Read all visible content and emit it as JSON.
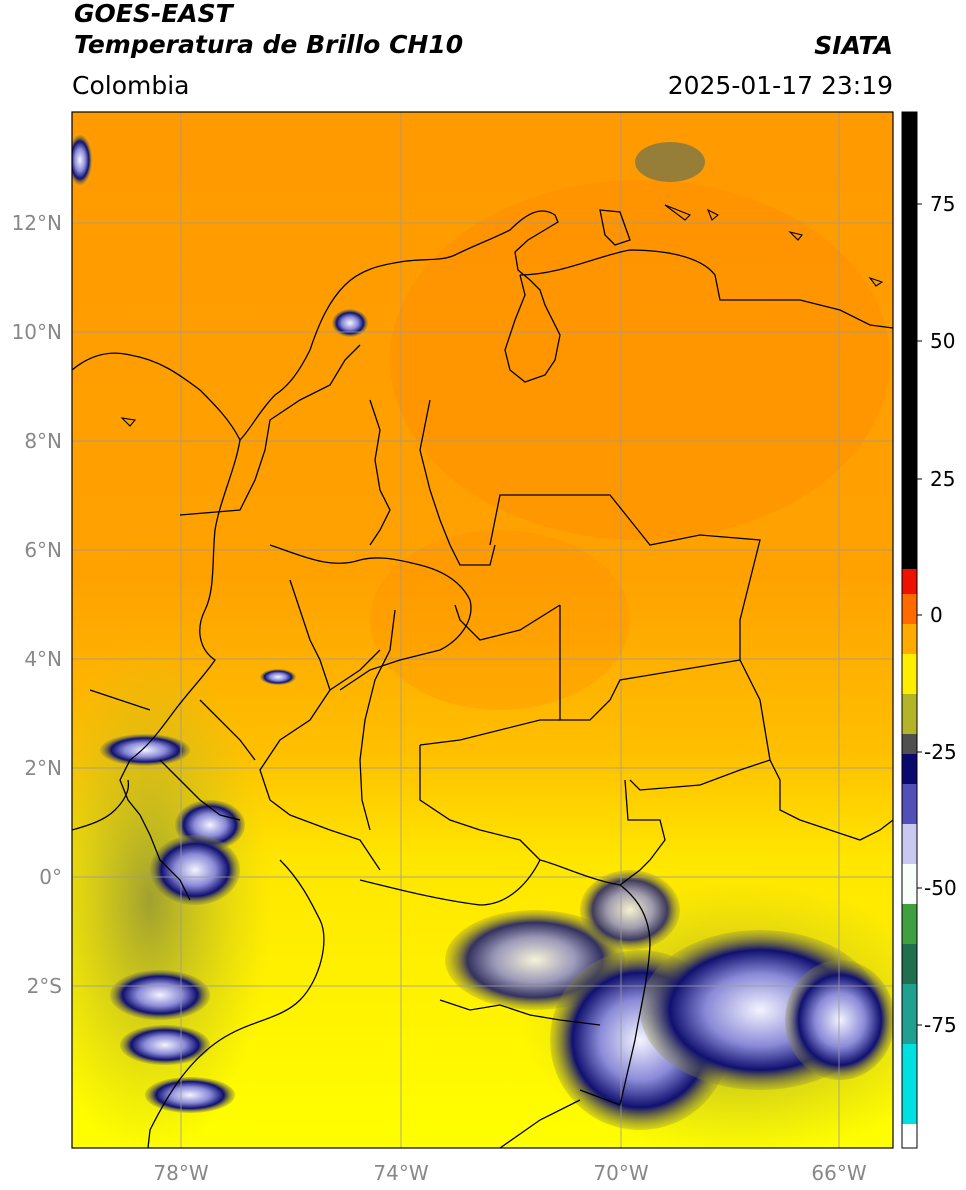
{
  "header": {
    "satellite": "GOES-EAST",
    "product": "Temperatura de Brillo CH10",
    "region": "Colombia",
    "organization": "SIATA",
    "timestamp": "2025-01-17 23:19"
  },
  "axes": {
    "lat_labels": [
      "12°N",
      "10°N",
      "8°N",
      "6°N",
      "4°N",
      "2°N",
      "0°",
      "2°S"
    ],
    "lon_labels": [
      "78°W",
      "74°W",
      "70°W",
      "66°W"
    ]
  },
  "colorbar": {
    "tick_labels": [
      "75",
      "50",
      "25",
      "0",
      "-25",
      "-50",
      "-75"
    ],
    "colors": {
      "black": "#000000",
      "red": "#ff0000",
      "orange": "#ff8c00",
      "yellow": "#ffff00",
      "olive": "#8c8c32",
      "navy": "#0a0a6e",
      "white": "#ffffff",
      "green": "#2e8b3a",
      "cyan": "#00e5e5"
    }
  }
}
